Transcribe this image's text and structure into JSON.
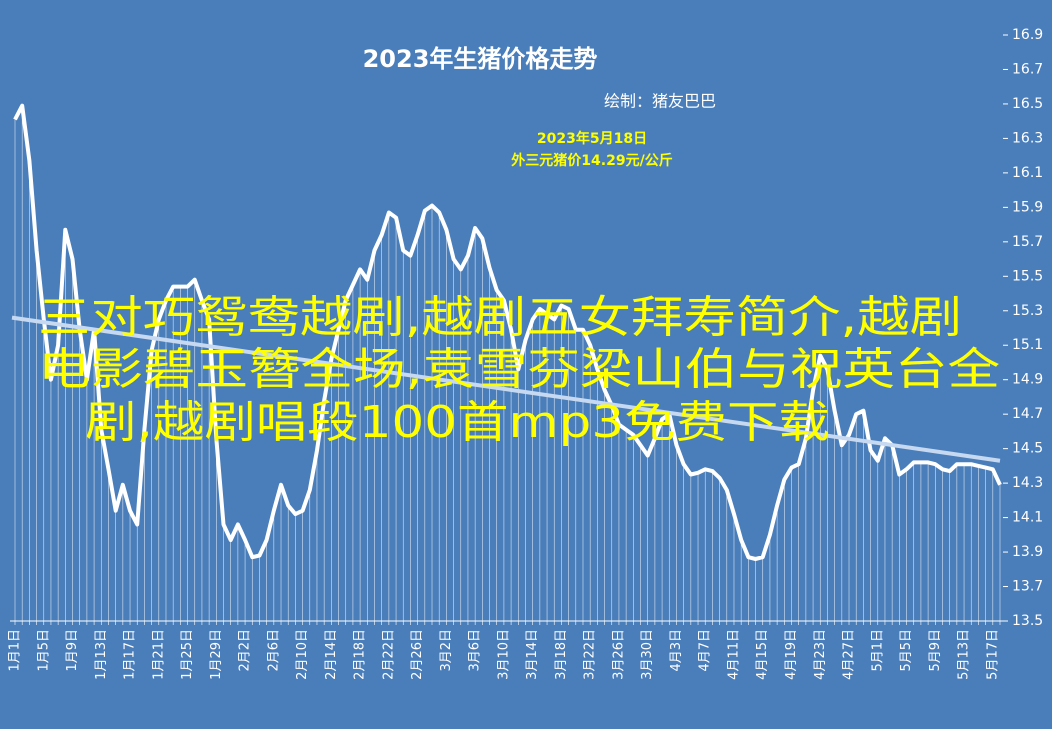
{
  "chart_data": {
    "type": "line",
    "title": "2023年生猪价格走势",
    "subtitle": "绘制：猪友巴巴",
    "annotation": [
      "2023年5月18日",
      "外三元猪价14.29元/公斤"
    ],
    "categories": [
      "1月1日",
      null,
      null,
      null,
      "1月5日",
      null,
      null,
      null,
      "1月9日",
      null,
      null,
      null,
      "1月13日",
      null,
      null,
      null,
      "1月17日",
      null,
      null,
      null,
      "1月21日",
      null,
      null,
      null,
      "1月25日",
      null,
      null,
      null,
      "1月29日",
      null,
      null,
      null,
      "2月2日",
      null,
      null,
      null,
      "2月6日",
      null,
      null,
      null,
      "2月10日",
      null,
      null,
      null,
      "2月14日",
      null,
      null,
      null,
      "2月18日",
      null,
      null,
      null,
      "2月22日",
      null,
      null,
      null,
      "2月26日",
      null,
      null,
      null,
      "3月2日",
      null,
      null,
      null,
      "3月6日",
      null,
      null,
      null,
      "3月10日",
      null,
      null,
      null,
      "3月14日",
      null,
      null,
      null,
      "3月18日",
      null,
      null,
      null,
      "3月22日",
      null,
      null,
      null,
      "3月26日",
      null,
      null,
      null,
      "3月30日",
      null,
      null,
      null,
      "4月3日",
      null,
      null,
      null,
      "4月7日",
      null,
      null,
      null,
      "4月11日",
      null,
      null,
      null,
      "4月15日",
      null,
      null,
      null,
      "4月19日",
      null,
      null,
      null,
      "4月23日",
      null,
      null,
      null,
      "4月27日",
      null,
      null,
      null,
      "5月1日",
      null,
      null,
      null,
      "5月5日",
      null,
      null,
      null,
      "5月9日",
      null,
      null,
      null,
      "5月13日",
      null,
      null,
      null,
      "5月17日",
      null
    ],
    "values": [
      16.41,
      16.49,
      16.17,
      15.65,
      15.25,
      14.9,
      15.1,
      15.77,
      15.6,
      15.19,
      14.9,
      15.19,
      14.61,
      14.38,
      14.14,
      14.29,
      14.14,
      14.06,
      14.61,
      15.07,
      15.25,
      15.36,
      15.44,
      15.44,
      15.44,
      15.48,
      15.36,
      15.25,
      14.56,
      14.06,
      13.97,
      14.06,
      13.97,
      13.87,
      13.88,
      13.97,
      14.14,
      14.29,
      14.17,
      14.12,
      14.14,
      14.26,
      14.49,
      14.78,
      15.02,
      15.19,
      15.36,
      15.45,
      15.54,
      15.48,
      15.65,
      15.74,
      15.87,
      15.84,
      15.65,
      15.62,
      15.74,
      15.88,
      15.91,
      15.87,
      15.77,
      15.6,
      15.54,
      15.62,
      15.78,
      15.72,
      15.55,
      15.42,
      15.36,
      15.19,
      14.96,
      15.13,
      15.25,
      15.31,
      15.28,
      15.25,
      15.33,
      15.31,
      15.19,
      15.19,
      15.1,
      14.96,
      14.84,
      14.75,
      14.64,
      14.61,
      14.58,
      14.52,
      14.46,
      14.56,
      14.67,
      14.7,
      14.52,
      14.41,
      14.35,
      14.36,
      14.38,
      14.37,
      14.33,
      14.26,
      14.12,
      13.97,
      13.87,
      13.86,
      13.87,
      14.0,
      14.17,
      14.32,
      14.39,
      14.41,
      14.56,
      14.84,
      15.04,
      14.96,
      14.72,
      14.52,
      14.58,
      14.7,
      14.72,
      14.49,
      14.43,
      14.56,
      14.52,
      14.35,
      14.38,
      14.42,
      14.42,
      14.42,
      14.41,
      14.38,
      14.37,
      14.41,
      14.41,
      14.41,
      14.4,
      14.39,
      14.38,
      14.29
    ],
    "color": "#ffffff",
    "trendline": [
      15.26,
      14.43
    ],
    "trendline_color": "#c6d9f1",
    "ylim": [
      13.5,
      16.9
    ],
    "yticks": [
      13.5,
      13.7,
      13.9,
      14.1,
      14.3,
      14.5,
      14.7,
      14.9,
      15.1,
      15.3,
      15.5,
      15.7,
      15.9,
      16.1,
      16.3,
      16.5,
      16.7,
      16.9
    ]
  },
  "overlay_text": [
    "三对巧鸳鸯越剧,越剧五女拜寿简介,越剧",
    "电影碧玉簪全场,袁雪芬梁山伯与祝英台全",
    "剧,越剧唱段100首mp3免费下载"
  ]
}
